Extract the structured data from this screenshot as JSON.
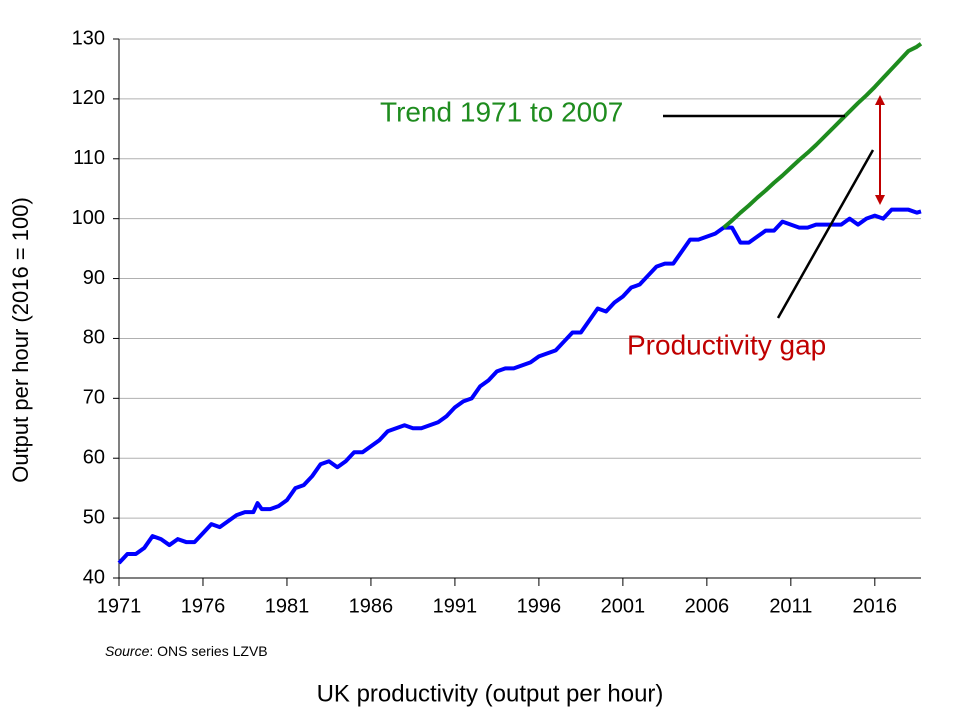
{
  "chart_data": {
    "type": "line",
    "title": "UK productivity (output per hour)",
    "y_label": "Output per hour (2016 = 100)",
    "source_label": "Source",
    "source_text": ": ONS series LZVB",
    "annotations": [
      "Trend 1971 to 2007",
      "Productivity gap"
    ],
    "x": [
      1971,
      1971.5,
      1972,
      1972.5,
      1973,
      1973.5,
      1974,
      1974.5,
      1975,
      1975.5,
      1976,
      1976.5,
      1977,
      1977.5,
      1978,
      1978.5,
      1979,
      1979.25,
      1979.5,
      1980,
      1980.5,
      1981,
      1981.5,
      1982,
      1982.5,
      1983,
      1983.5,
      1984,
      1984.5,
      1985,
      1985.5,
      1986,
      1986.5,
      1987,
      1987.5,
      1988,
      1988.5,
      1989,
      1989.5,
      1990,
      1990.5,
      1991,
      1991.5,
      1992,
      1992.5,
      1993,
      1993.5,
      1994,
      1994.5,
      1995,
      1995.5,
      1996,
      1996.5,
      1997,
      1997.5,
      1998,
      1998.5,
      1999,
      1999.5,
      2000,
      2000.5,
      2001,
      2001.5,
      2002,
      2002.5,
      2003,
      2003.5,
      2004,
      2004.5,
      2005,
      2005.5,
      2006,
      2006.5,
      2007,
      2007.5,
      2008,
      2008.5,
      2009,
      2009.5,
      2010,
      2010.5,
      2011,
      2011.5,
      2012,
      2012.5,
      2013,
      2013.5,
      2014,
      2014.5,
      2015,
      2015.5,
      2016,
      2016.5,
      2017,
      2017.5,
      2018,
      2018.5,
      2018.75
    ],
    "series": [
      {
        "color": "#0000ff",
        "values": [
          42.5,
          44,
          44,
          45,
          47,
          46.5,
          45.5,
          46.5,
          46,
          46,
          47.5,
          49,
          48.5,
          49.5,
          50.5,
          51,
          51,
          52.5,
          51.5,
          51.5,
          52,
          53,
          55,
          55.5,
          57,
          59,
          59.5,
          58.5,
          59.5,
          61,
          61,
          62,
          63,
          64.5,
          65,
          65.5,
          65,
          65,
          65.5,
          66,
          67,
          68.5,
          69.5,
          70,
          72,
          73,
          74.5,
          75,
          75,
          75.5,
          76,
          77,
          77.5,
          78,
          79.5,
          81,
          81,
          83,
          85,
          84.5,
          86,
          87,
          88.5,
          89,
          90.5,
          92,
          92.5,
          92.5,
          94.5,
          96.5,
          96.5,
          97,
          97.5,
          98.5,
          98.5,
          96,
          96,
          97,
          98,
          98,
          99.5,
          99,
          98.5,
          98.5,
          99,
          99,
          99,
          99,
          100,
          99,
          100,
          100.5,
          100,
          101.5,
          101.5,
          101.5,
          101,
          101.2
        ]
      },
      {
        "color": "#1e8c1e",
        "values": [
          null,
          null,
          null,
          null,
          null,
          null,
          null,
          null,
          null,
          null,
          null,
          null,
          null,
          null,
          null,
          null,
          null,
          null,
          null,
          null,
          null,
          null,
          null,
          null,
          null,
          null,
          null,
          null,
          null,
          null,
          null,
          null,
          null,
          null,
          null,
          null,
          null,
          null,
          null,
          null,
          null,
          null,
          null,
          null,
          null,
          null,
          null,
          null,
          null,
          null,
          null,
          null,
          null,
          null,
          null,
          null,
          null,
          null,
          null,
          null,
          null,
          null,
          null,
          null,
          null,
          null,
          null,
          null,
          null,
          null,
          null,
          null,
          null,
          98.5,
          99.7,
          101,
          102.2,
          103.5,
          104.7,
          106,
          107.2,
          108.5,
          109.8,
          111,
          112.3,
          113.7,
          115.1,
          116.5,
          117.9,
          119.3,
          120.6,
          122,
          123.5,
          125,
          126.5,
          128,
          128.7,
          129.2
        ]
      }
    ],
    "xlim": [
      1971,
      2018.75
    ],
    "xticks": [
      1971,
      1976,
      1981,
      1986,
      1991,
      1996,
      2001,
      2006,
      2011,
      2016
    ],
    "ylim": [
      40,
      130
    ],
    "yticks": [
      40,
      50,
      60,
      70,
      80,
      90,
      100,
      110,
      120,
      130
    ],
    "grid": true,
    "annotation_colors": [
      "#1e8c1e",
      "#c00000"
    ]
  }
}
